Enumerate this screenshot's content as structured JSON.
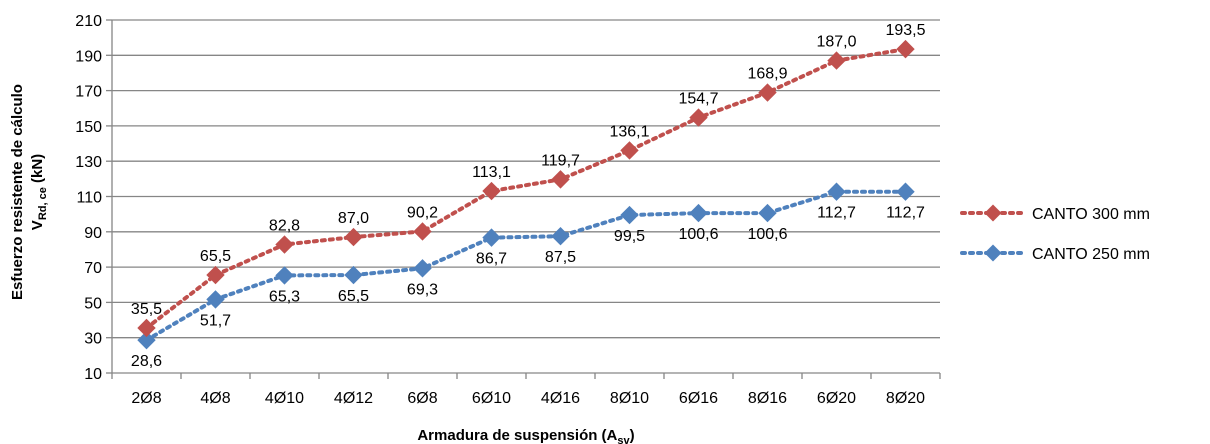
{
  "chart_data": {
    "type": "line",
    "categories": [
      "2Ø8",
      "4Ø8",
      "4Ø10",
      "4Ø12",
      "6Ø8",
      "6Ø10",
      "4Ø16",
      "8Ø10",
      "6Ø16",
      "8Ø16",
      "6Ø20",
      "8Ø20"
    ],
    "series": [
      {
        "name": "CANTO 300 mm",
        "values": [
          35.5,
          65.5,
          82.8,
          87.0,
          90.2,
          113.1,
          119.7,
          136.1,
          154.7,
          168.9,
          187.0,
          193.5
        ],
        "labels": [
          "35,5",
          "65,5",
          "82,8",
          "87,0",
          "90,2",
          "113,1",
          "119,7",
          "136,1",
          "154,7",
          "168,9",
          "187,0",
          "193,5"
        ],
        "color": "#C0504D",
        "label_position": "above"
      },
      {
        "name": "CANTO 250 mm",
        "values": [
          28.6,
          51.7,
          65.3,
          65.5,
          69.3,
          86.7,
          87.5,
          99.5,
          100.6,
          100.6,
          112.7,
          112.7
        ],
        "labels": [
          "28,6",
          "51,7",
          "65,3",
          "65,5",
          "69,3",
          "86,7",
          "87,5",
          "99,5",
          "100,6",
          "100,6",
          "112,7",
          "112,7"
        ],
        "color": "#4F81BD",
        "label_position": "below"
      }
    ],
    "ylim": [
      10,
      210
    ],
    "yticks": [
      "10",
      "30",
      "50",
      "70",
      "90",
      "110",
      "130",
      "150",
      "170",
      "190",
      "210"
    ],
    "xlabel": {
      "main": "Armadura de suspensión (A",
      "sub": "sv",
      "end": ")"
    },
    "ylabel": {
      "line1": "Esfuerzo resistente de cálculo",
      "line2_main": "V",
      "line2_sub": "Rd, ce",
      "line2_end": "  (kN)"
    },
    "grid": true,
    "legend_position": "right",
    "line_style": "dotted",
    "marker": "diamond"
  }
}
